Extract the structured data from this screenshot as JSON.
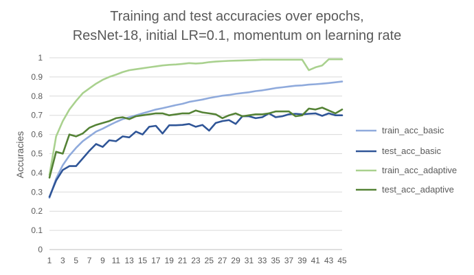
{
  "chart_data": {
    "type": "line",
    "title": "Training and test accuracies over epochs,",
    "subtitle": "ResNet-18, initial LR=0.1, momentum on learning rate",
    "xlabel": "",
    "ylabel": "Accuracies",
    "ylim": [
      0,
      1
    ],
    "yticks": [
      "0",
      "0.1",
      "0.2",
      "0.3",
      "0.4",
      "0.5",
      "0.6",
      "0.7",
      "0.8",
      "0.9",
      "1"
    ],
    "x": [
      1,
      2,
      3,
      4,
      5,
      6,
      7,
      8,
      9,
      10,
      11,
      12,
      13,
      14,
      15,
      16,
      17,
      18,
      19,
      20,
      21,
      22,
      23,
      24,
      25,
      26,
      27,
      28,
      29,
      30,
      31,
      32,
      33,
      34,
      35,
      36,
      37,
      38,
      39,
      40,
      41,
      42,
      43,
      44,
      45
    ],
    "xtick_labels": [
      "1",
      "3",
      "5",
      "7",
      "9",
      "11",
      "13",
      "15",
      "17",
      "19",
      "21",
      "23",
      "25",
      "27",
      "29",
      "31",
      "33",
      "35",
      "37",
      "39",
      "41",
      "43",
      "45"
    ],
    "grid": true,
    "legend_position": "right",
    "series": [
      {
        "name": "train_acc_basic",
        "color": "#8faadc",
        "values": [
          0.27,
          0.37,
          0.44,
          0.49,
          0.53,
          0.565,
          0.59,
          0.615,
          0.63,
          0.648,
          0.665,
          0.68,
          0.69,
          0.7,
          0.71,
          0.72,
          0.73,
          0.737,
          0.745,
          0.753,
          0.76,
          0.77,
          0.776,
          0.782,
          0.79,
          0.796,
          0.802,
          0.806,
          0.812,
          0.816,
          0.82,
          0.826,
          0.83,
          0.836,
          0.842,
          0.846,
          0.85,
          0.854,
          0.856,
          0.86,
          0.862,
          0.865,
          0.868,
          0.872,
          0.876
        ]
      },
      {
        "name": "test_acc_basic",
        "color": "#2f5597",
        "values": [
          0.275,
          0.36,
          0.415,
          0.435,
          0.435,
          0.475,
          0.515,
          0.55,
          0.535,
          0.57,
          0.565,
          0.59,
          0.585,
          0.615,
          0.6,
          0.64,
          0.645,
          0.605,
          0.648,
          0.648,
          0.65,
          0.655,
          0.64,
          0.65,
          0.62,
          0.66,
          0.67,
          0.675,
          0.655,
          0.695,
          0.695,
          0.685,
          0.69,
          0.71,
          0.69,
          0.695,
          0.705,
          0.708,
          0.705,
          0.708,
          0.71,
          0.697,
          0.71,
          0.7,
          0.7
        ]
      },
      {
        "name": "train_acc_adaptive",
        "color": "#a9d18e",
        "values": [
          0.39,
          0.59,
          0.67,
          0.73,
          0.775,
          0.815,
          0.84,
          0.865,
          0.885,
          0.9,
          0.912,
          0.925,
          0.935,
          0.94,
          0.945,
          0.95,
          0.955,
          0.96,
          0.963,
          0.965,
          0.968,
          0.972,
          0.97,
          0.972,
          0.977,
          0.98,
          0.982,
          0.984,
          0.985,
          0.986,
          0.987,
          0.988,
          0.99,
          0.99,
          0.99,
          0.99,
          0.99,
          0.99,
          0.99,
          0.935,
          0.95,
          0.96,
          0.992,
          0.992,
          0.992
        ]
      },
      {
        "name": "test_acc_adaptive",
        "color": "#548235",
        "values": [
          0.375,
          0.51,
          0.5,
          0.6,
          0.59,
          0.605,
          0.635,
          0.65,
          0.66,
          0.67,
          0.685,
          0.69,
          0.68,
          0.695,
          0.7,
          0.705,
          0.71,
          0.71,
          0.7,
          0.705,
          0.71,
          0.71,
          0.725,
          0.715,
          0.71,
          0.705,
          0.685,
          0.7,
          0.71,
          0.695,
          0.7,
          0.705,
          0.705,
          0.71,
          0.72,
          0.72,
          0.72,
          0.695,
          0.7,
          0.735,
          0.73,
          0.74,
          0.725,
          0.71,
          0.73
        ]
      }
    ]
  }
}
